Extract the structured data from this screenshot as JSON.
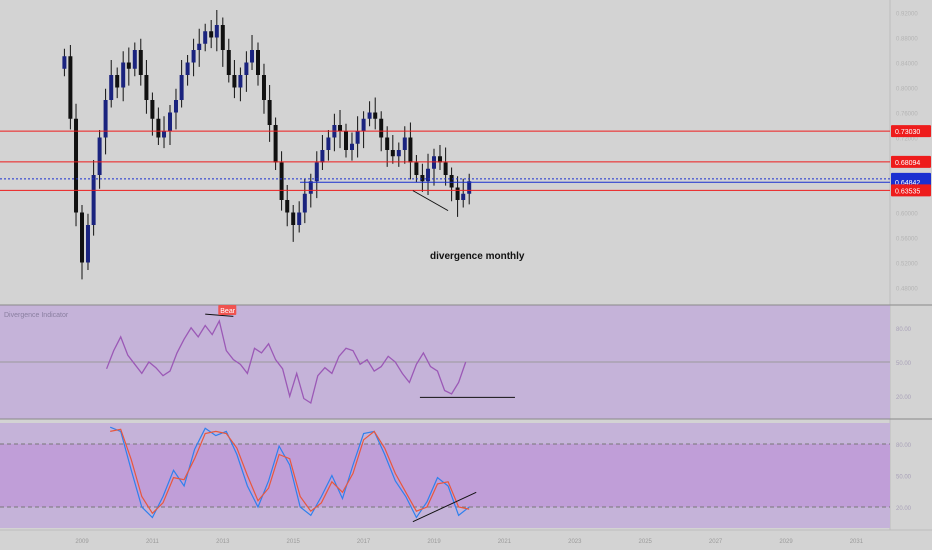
{
  "chart_data": [
    {
      "type": "candlestick",
      "title": "",
      "xlabel": "",
      "ylabel": "",
      "x_ticks": [
        "2009",
        "2011",
        "2013",
        "2015",
        "2017",
        "2019",
        "2021",
        "2023",
        "2025",
        "2027",
        "2029",
        "2031"
      ],
      "y_ticks": [
        "0.92000",
        "0.88000",
        "0.84000",
        "0.80000",
        "0.76000",
        "0.72000",
        "0.68000",
        "0.64000",
        "0.60000",
        "0.56000",
        "0.52000",
        "0.48000"
      ],
      "ylim": [
        0.46,
        0.94
      ],
      "price_levels": [
        {
          "label": "0.73030",
          "value": 0.7303,
          "color": "#ee1c1c",
          "style": "solid"
        },
        {
          "label": "0.68094",
          "value": 0.68094,
          "color": "#ee1c1c",
          "style": "solid"
        },
        {
          "label": "0.65384",
          "value": 0.65384,
          "color": "#1a2fd0",
          "style": "dotted"
        },
        {
          "label": "0.64842",
          "value": 0.64842,
          "color": "#1a2fd0",
          "style": "solid"
        },
        {
          "label": "0.63535",
          "value": 0.63535,
          "color": "#ee1c1c",
          "style": "solid"
        }
      ],
      "annotation": "divergence monthly",
      "series": [
        {
          "x": [
            2008.5,
            2008.67,
            2008.83,
            2009.0,
            2009.17,
            2009.33,
            2009.5,
            2009.67,
            2009.83,
            2010.0,
            2010.17,
            2010.33,
            2010.5,
            2010.67,
            2010.83,
            2011.0,
            2011.17,
            2011.33,
            2011.5,
            2011.67,
            2011.83,
            2012.0,
            2012.17,
            2012.33,
            2012.5,
            2012.67,
            2012.83,
            2013.0,
            2013.17,
            2013.33,
            2013.5,
            2013.67,
            2013.83,
            2014.0,
            2014.17,
            2014.33,
            2014.5,
            2014.67,
            2014.83,
            2015.0,
            2015.17,
            2015.33,
            2015.5,
            2015.67,
            2015.83,
            2016.0,
            2016.17,
            2016.33,
            2016.5,
            2016.67,
            2016.83,
            2017.0,
            2017.17,
            2017.33,
            2017.5,
            2017.67,
            2017.83,
            2018.0,
            2018.17,
            2018.33,
            2018.5,
            2018.67,
            2018.83,
            2019.0,
            2019.17,
            2019.33,
            2019.5,
            2019.67,
            2019.83,
            2020.0
          ],
          "values": [
            0.85,
            0.75,
            0.6,
            0.52,
            0.58,
            0.66,
            0.72,
            0.78,
            0.82,
            0.8,
            0.84,
            0.83,
            0.86,
            0.82,
            0.78,
            0.75,
            0.72,
            0.73,
            0.76,
            0.78,
            0.82,
            0.84,
            0.86,
            0.87,
            0.89,
            0.88,
            0.9,
            0.86,
            0.82,
            0.8,
            0.82,
            0.84,
            0.86,
            0.82,
            0.78,
            0.74,
            0.68,
            0.62,
            0.6,
            0.58,
            0.6,
            0.63,
            0.65,
            0.68,
            0.7,
            0.72,
            0.74,
            0.73,
            0.7,
            0.71,
            0.73,
            0.75,
            0.76,
            0.75,
            0.72,
            0.7,
            0.69,
            0.7,
            0.72,
            0.68,
            0.66,
            0.65,
            0.67,
            0.69,
            0.68,
            0.66,
            0.64,
            0.62,
            0.63,
            0.65
          ]
        }
      ]
    },
    {
      "type": "line",
      "title": "Divergence Indicator",
      "ylim": [
        0,
        100
      ],
      "y_ticks": [
        "80.00",
        "50.00",
        "20.00"
      ],
      "signal_label": "Bear",
      "series": [
        {
          "name": "",
          "x": [
            2009.7,
            2009.9,
            2010.1,
            2010.3,
            2010.5,
            2010.7,
            2010.9,
            2011.1,
            2011.3,
            2011.5,
            2011.7,
            2011.9,
            2012.1,
            2012.3,
            2012.5,
            2012.7,
            2012.9,
            2013.1,
            2013.3,
            2013.5,
            2013.7,
            2013.9,
            2014.1,
            2014.3,
            2014.5,
            2014.7,
            2014.9,
            2015.1,
            2015.3,
            2015.5,
            2015.7,
            2015.9,
            2016.1,
            2016.3,
            2016.5,
            2016.7,
            2016.9,
            2017.1,
            2017.3,
            2017.5,
            2017.7,
            2017.9,
            2018.1,
            2018.3,
            2018.5,
            2018.7,
            2018.9,
            2019.1,
            2019.3,
            2019.5,
            2019.7,
            2019.9
          ],
          "values": [
            44,
            60,
            72,
            56,
            48,
            40,
            50,
            45,
            38,
            42,
            58,
            70,
            80,
            72,
            82,
            74,
            86,
            60,
            52,
            48,
            40,
            62,
            58,
            66,
            52,
            44,
            20,
            40,
            18,
            14,
            38,
            45,
            40,
            55,
            62,
            60,
            48,
            52,
            42,
            46,
            55,
            50,
            40,
            32,
            48,
            58,
            46,
            42,
            25,
            22,
            32,
            50
          ]
        }
      ]
    },
    {
      "type": "line",
      "title": "",
      "ylim": [
        0,
        100
      ],
      "y_ticks": [
        "80.00",
        "50.00",
        "20.00"
      ],
      "series": [
        {
          "name": "",
          "color": "#2f80ed",
          "x": [
            2009.8,
            2010.1,
            2010.4,
            2010.7,
            2011.0,
            2011.3,
            2011.6,
            2011.9,
            2012.2,
            2012.5,
            2012.8,
            2013.1,
            2013.4,
            2013.7,
            2014.0,
            2014.3,
            2014.6,
            2014.9,
            2015.2,
            2015.5,
            2015.8,
            2016.1,
            2016.4,
            2016.7,
            2017.0,
            2017.3,
            2017.6,
            2017.9,
            2018.2,
            2018.5,
            2018.8,
            2019.1,
            2019.4,
            2019.7,
            2020.0
          ],
          "values": [
            96,
            92,
            55,
            20,
            10,
            30,
            55,
            40,
            75,
            95,
            88,
            92,
            70,
            40,
            20,
            45,
            78,
            60,
            20,
            12,
            30,
            50,
            28,
            60,
            90,
            92,
            70,
            45,
            30,
            10,
            25,
            48,
            40,
            12,
            20
          ]
        },
        {
          "name": "",
          "color": "#e8573d",
          "x": [
            2009.8,
            2010.1,
            2010.4,
            2010.7,
            2011.0,
            2011.3,
            2011.6,
            2011.9,
            2012.2,
            2012.5,
            2012.8,
            2013.1,
            2013.4,
            2013.7,
            2014.0,
            2014.3,
            2014.6,
            2014.9,
            2015.2,
            2015.5,
            2015.8,
            2016.1,
            2016.4,
            2016.7,
            2017.0,
            2017.3,
            2017.6,
            2017.9,
            2018.2,
            2018.5,
            2018.8,
            2019.1,
            2019.4,
            2019.7,
            2020.0
          ],
          "values": [
            92,
            94,
            65,
            30,
            14,
            24,
            48,
            46,
            66,
            90,
            92,
            90,
            76,
            50,
            26,
            38,
            70,
            66,
            30,
            16,
            24,
            44,
            34,
            52,
            84,
            92,
            76,
            52,
            34,
            16,
            20,
            42,
            44,
            20,
            18
          ]
        }
      ]
    }
  ]
}
